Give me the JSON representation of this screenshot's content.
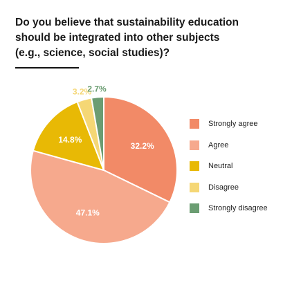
{
  "title_lines": [
    "Do you believe that sustainability education",
    "should be integrated into other subjects",
    "(e.g., science, social studies)?"
  ],
  "chart_data": {
    "type": "pie",
    "title": "Do you believe that sustainability education should be integrated into other subjects (e.g., science, social studies)?",
    "legend_position": "right",
    "start_angle": "12 o'clock, clockwise",
    "slices": [
      {
        "label": "Strongly agree",
        "value": 32.2,
        "display": "32.2%",
        "color": "#F28A67"
      },
      {
        "label": "Agree",
        "value": 47.1,
        "display": "47.1%",
        "color": "#F6A98D"
      },
      {
        "label": "Neutral",
        "value": 14.8,
        "display": "14.8%",
        "color": "#E8B905"
      },
      {
        "label": "Disagree",
        "value": 3.2,
        "display": "3.2%",
        "color": "#F5D775"
      },
      {
        "label": "Strongly disagree",
        "value": 2.7,
        "display": "2.7%",
        "color": "#6B9D72"
      }
    ]
  }
}
